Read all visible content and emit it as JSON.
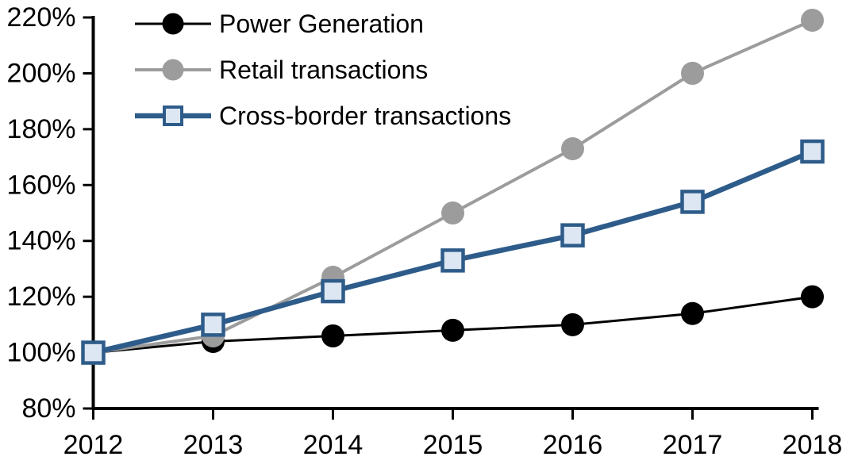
{
  "chart_data": {
    "type": "line",
    "title": "",
    "xlabel": "",
    "ylabel": "",
    "categories": [
      "2012",
      "2013",
      "2014",
      "2015",
      "2016",
      "2017",
      "2018"
    ],
    "y_axis": {
      "min": 80,
      "max": 220,
      "step": 20,
      "unit_suffix": "%",
      "tick_labels": [
        "80%",
        "100%",
        "120%",
        "140%",
        "160%",
        "180%",
        "200%",
        "220%"
      ]
    },
    "grid": false,
    "legend_position": "top-left-inside",
    "series": [
      {
        "name": "Power Generation",
        "values": [
          100,
          104,
          106,
          108,
          110,
          114,
          120
        ],
        "color": "#000000",
        "marker": "circle",
        "marker_fill": "#000000",
        "line_width": 3
      },
      {
        "name": "Retail transactions",
        "values": [
          100,
          106,
          127,
          150,
          173,
          200,
          219
        ],
        "color": "#9C9C9C",
        "marker": "circle",
        "marker_fill": "#9C9C9C",
        "line_width": 4
      },
      {
        "name": "Cross-border transactions",
        "values": [
          100,
          110,
          122,
          133,
          142,
          154,
          172
        ],
        "color": "#2E5C8A",
        "marker": "square",
        "marker_fill": "#DCE7F3",
        "line_width": 6.5
      }
    ]
  },
  "colors": {
    "background": "#FFFFFF",
    "axis": "#000000"
  }
}
